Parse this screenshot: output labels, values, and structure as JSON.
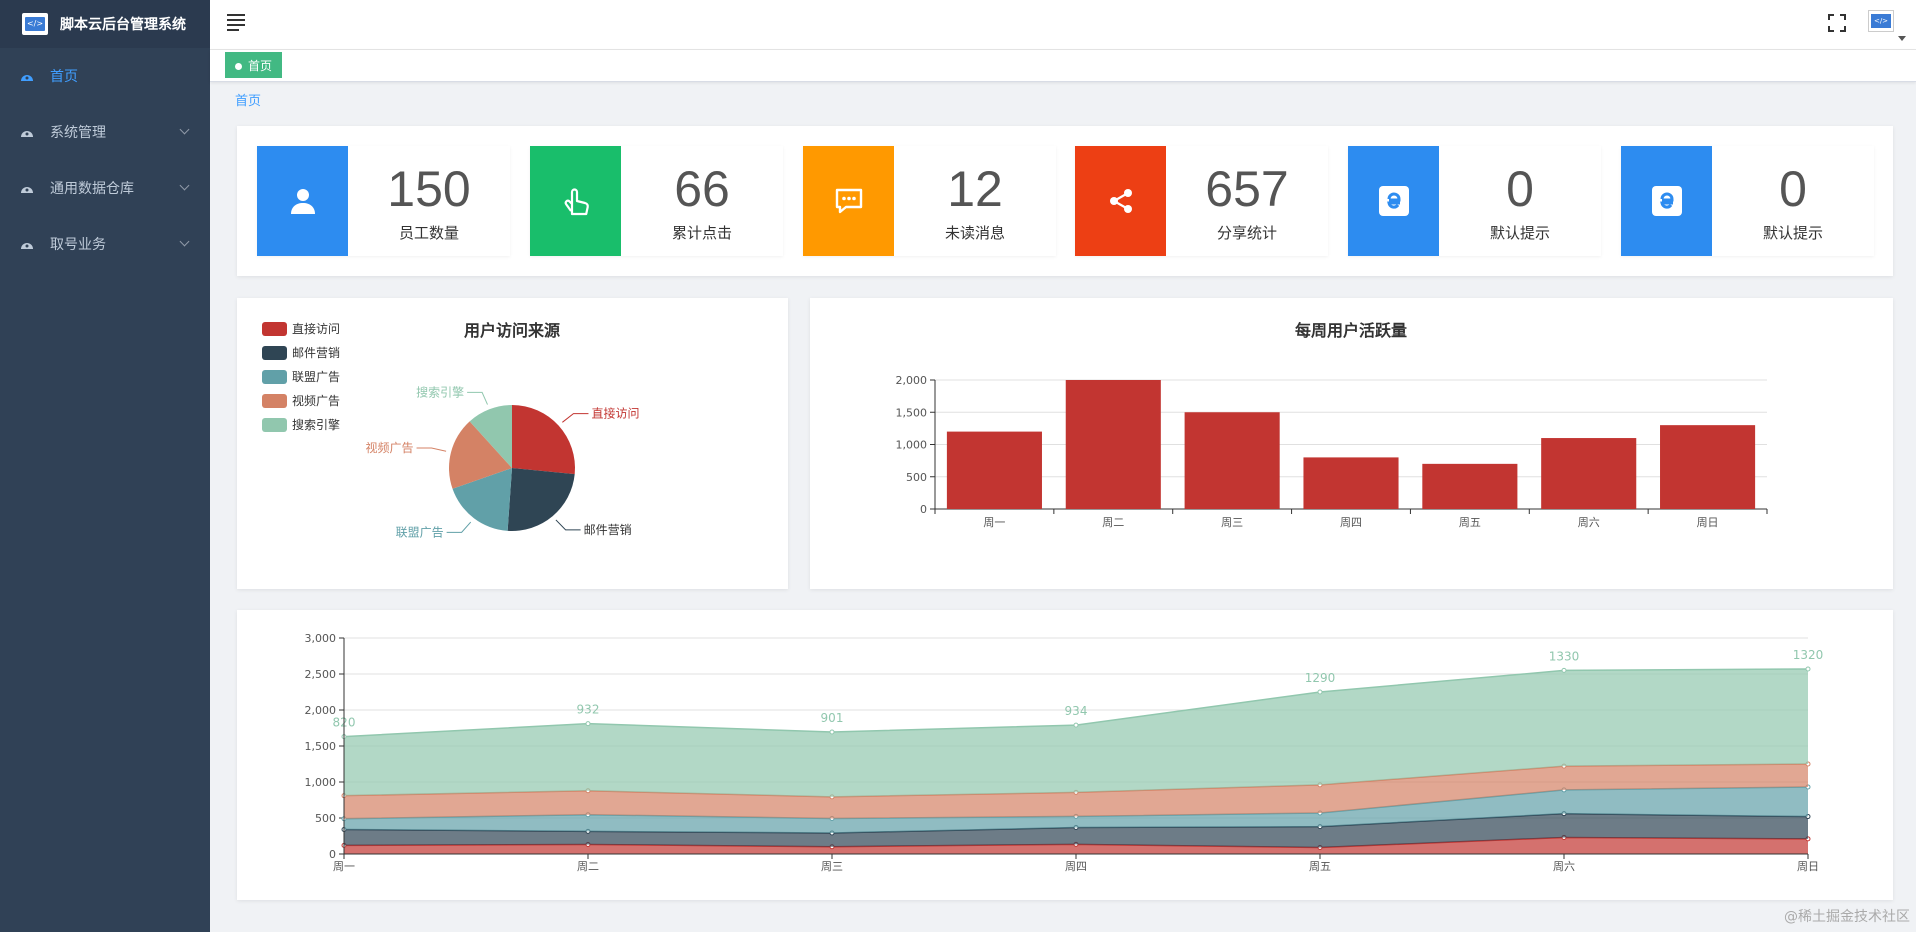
{
  "app": {
    "title": "脚本云后台管理系统"
  },
  "sidebar": {
    "items": [
      {
        "label": "首页",
        "active": true
      },
      {
        "label": "系统管理"
      },
      {
        "label": "通用数据仓库"
      },
      {
        "label": "取号业务"
      }
    ]
  },
  "tags": {
    "active": "首页"
  },
  "breadcrumb": {
    "current": "首页"
  },
  "stats": [
    {
      "value": "150",
      "label": "员工数量",
      "color": "#2d8cf0",
      "icon": "user-icon"
    },
    {
      "value": "66",
      "label": "累计点击",
      "color": "#19be6b",
      "icon": "pointer-hand-icon"
    },
    {
      "value": "12",
      "label": "未读消息",
      "color": "#ff9900",
      "icon": "message-icon"
    },
    {
      "value": "657",
      "label": "分享统计",
      "color": "#ed3f14",
      "icon": "share-icon"
    },
    {
      "value": "0",
      "label": "默认提示",
      "color": "#2d8cf0",
      "icon": "edge-icon"
    },
    {
      "value": "0",
      "label": "默认提示",
      "color": "#2d8cf0",
      "icon": "edge-icon"
    }
  ],
  "watermark": "@稀土掘金技术社区",
  "chart_data": [
    {
      "type": "pie",
      "title": "用户访问来源",
      "legend_position": "top-left",
      "slices": [
        {
          "name": "直接访问",
          "value": 335,
          "color": "#c23531"
        },
        {
          "name": "邮件营销",
          "value": 310,
          "color": "#2f4554"
        },
        {
          "name": "联盟广告",
          "value": 234,
          "color": "#61a0a8"
        },
        {
          "name": "视频广告",
          "value": 235,
          "color": "#d48265"
        },
        {
          "name": "搜索引擎",
          "value": 148,
          "color": "#91c7ae"
        }
      ]
    },
    {
      "type": "bar",
      "title": "每周用户活跃量",
      "categories": [
        "周一",
        "周二",
        "周三",
        "周四",
        "周五",
        "周六",
        "周日"
      ],
      "values": [
        1200,
        2000,
        1500,
        800,
        700,
        1100,
        1300
      ],
      "ylim": [
        0,
        2000
      ],
      "yticks": [
        0,
        500,
        1000,
        1500,
        2000
      ],
      "ytick_labels": [
        "0",
        "500",
        "1,000",
        "1,500",
        "2,000"
      ],
      "color": "#c23531",
      "grid": true
    },
    {
      "type": "area",
      "stacked": true,
      "categories": [
        "周一",
        "周二",
        "周三",
        "周四",
        "周五",
        "周六",
        "周日"
      ],
      "ylim": [
        0,
        3000
      ],
      "yticks": [
        0,
        500,
        1000,
        1500,
        2000,
        2500,
        3000
      ],
      "ytick_labels": [
        "0",
        "500",
        "1,000",
        "1,500",
        "2,000",
        "2,500",
        "3,000"
      ],
      "grid": true,
      "series": [
        {
          "values": [
            120,
            132,
            101,
            134,
            90,
            230,
            210
          ],
          "color": "#c23531"
        },
        {
          "values": [
            220,
            182,
            191,
            234,
            290,
            330,
            310
          ],
          "color": "#2f4554"
        },
        {
          "values": [
            150,
            232,
            201,
            154,
            190,
            330,
            410
          ],
          "color": "#61a0a8"
        },
        {
          "values": [
            320,
            332,
            301,
            334,
            390,
            330,
            320
          ],
          "color": "#d48265"
        },
        {
          "values": [
            820,
            932,
            901,
            934,
            1290,
            1330,
            1320
          ],
          "color": "#91c7ae",
          "labels": [
            "820",
            "932",
            "901",
            "934",
            "1290",
            "1330",
            "1320"
          ]
        }
      ]
    }
  ]
}
